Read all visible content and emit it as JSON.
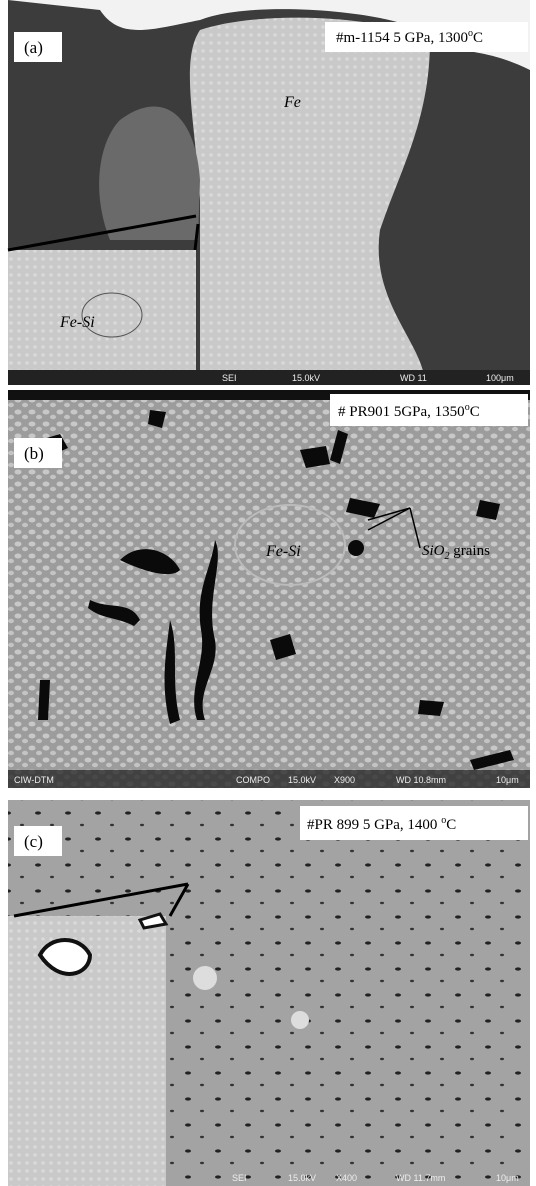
{
  "panels": [
    {
      "label": "(a)",
      "caption": {
        "text": "#m-1154 5 GPa, 1300",
        "sup": "o",
        "tail": "C"
      },
      "annotations": [
        "Fe",
        "Fe-Si"
      ],
      "footer": [
        "SEI",
        "15.0kV",
        "WD 11",
        "100μm"
      ]
    },
    {
      "label": "(b)",
      "caption": {
        "text": "# PR901 5GPa, 1350",
        "sup": "o",
        "tail": "C"
      },
      "annotations": [
        "Fe-Si"
      ],
      "grains": {
        "text": "SiO",
        "sub": "2",
        "tail": " grains"
      },
      "footer": [
        "CIW-DTM",
        "COMPO",
        "15.0kV",
        "X900",
        "WD 10.8mm",
        "10μm"
      ]
    },
    {
      "label": "(c)",
      "caption": {
        "text": "#PR 899 5 GPa, 1400 ",
        "sup": "o",
        "tail": "C"
      },
      "footer": [
        "SEI",
        "15.0kV",
        "X400",
        "WD 11.7mm",
        "10μm"
      ]
    }
  ]
}
